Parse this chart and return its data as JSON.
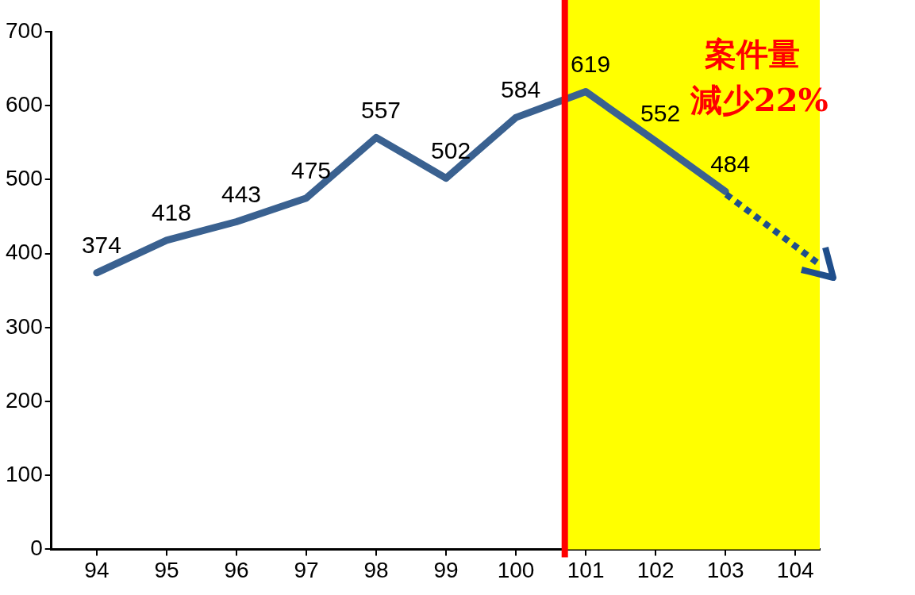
{
  "chart_data": {
    "type": "line",
    "x": [
      94,
      95,
      96,
      97,
      98,
      99,
      100,
      101,
      102,
      103
    ],
    "series": [
      {
        "color": "#3a6190",
        "values": [
          374,
          418,
          443,
          475,
          557,
          502,
          584,
          619,
          552,
          484
        ]
      }
    ],
    "xlim": [
      93.35,
      104.35
    ],
    "xticks": [
      94,
      95,
      96,
      97,
      98,
      99,
      100,
      101,
      102,
      103,
      104
    ],
    "ylim": [
      0,
      700
    ],
    "yticks": [
      0,
      100,
      200,
      300,
      400,
      500,
      600,
      700
    ],
    "grid": false,
    "legend": false,
    "marker": "none",
    "line_style": "solid",
    "data_labels": true,
    "ref_lines": [
      {
        "axis": "x",
        "value": 100.7,
        "color": "#ff0000"
      }
    ],
    "bands": [
      {
        "axis": "x",
        "from": 100.7,
        "to": 104.35,
        "color": "#ffff00"
      }
    ],
    "annotations": [
      "案件量",
      "減少22%"
    ]
  }
}
